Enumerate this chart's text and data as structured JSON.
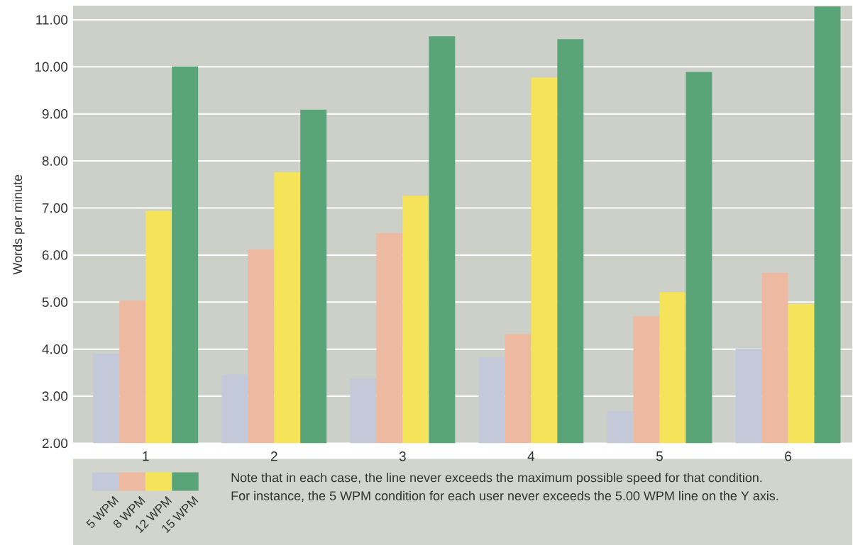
{
  "chart_data": {
    "type": "bar",
    "ylabel": "Words per minute",
    "categories": [
      "1",
      "2",
      "3",
      "4",
      "5",
      "6"
    ],
    "series": [
      {
        "name": "5 WPM",
        "color": "#c3c9d8",
        "values": [
          3.9,
          3.46,
          3.38,
          3.83,
          2.68,
          4.01
        ]
      },
      {
        "name": "8 WPM",
        "color": "#edb9a0",
        "values": [
          5.03,
          6.12,
          6.46,
          4.32,
          4.7,
          5.62
        ]
      },
      {
        "name": "12 WPM",
        "color": "#f5e35a",
        "values": [
          6.94,
          7.76,
          7.26,
          9.77,
          5.21,
          4.96
        ]
      },
      {
        "name": "15 WPM",
        "color": "#5aa577",
        "values": [
          10.01,
          9.09,
          10.65,
          10.59,
          9.89,
          11.28
        ]
      }
    ],
    "ylim": [
      2,
      11.3
    ],
    "yticks": [
      {
        "value": 2,
        "label": "2.00"
      },
      {
        "value": 3,
        "label": "3.00"
      },
      {
        "value": 4,
        "label": "4.00"
      },
      {
        "value": 5,
        "label": "5.00"
      },
      {
        "value": 6,
        "label": "6.00"
      },
      {
        "value": 7,
        "label": "7.00"
      },
      {
        "value": 8,
        "label": "8.00"
      },
      {
        "value": 9,
        "label": "9.00"
      },
      {
        "value": 10,
        "label": "10.00"
      },
      {
        "value": 11,
        "label": "11.00"
      }
    ],
    "grid": "y",
    "legend": "bottom",
    "annotations": [
      "Note that in each case, the line never exceeds the maximum possible speed for that condition.",
      "For instance, the 5 WPM condition for each user never exceeds the 5.00 WPM line on the Y axis."
    ]
  }
}
